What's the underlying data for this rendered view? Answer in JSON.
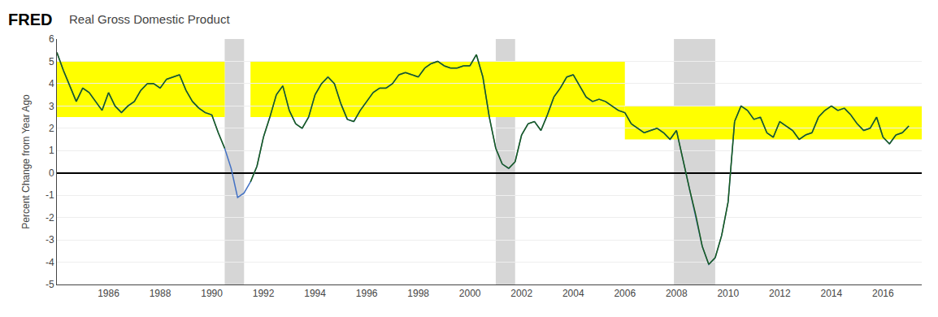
{
  "chart_data": {
    "type": "line",
    "title": "Real Gross Domestic Product",
    "ylabel": "Percent Change from Year Ago",
    "annotations": [
      "FRED"
    ],
    "color": "#4472c4",
    "x": [
      1984.0,
      1984.25,
      1984.5,
      1984.75,
      1985.0,
      1985.25,
      1985.5,
      1985.75,
      1986.0,
      1986.25,
      1986.5,
      1986.75,
      1987.0,
      1987.25,
      1987.5,
      1987.75,
      1988.0,
      1988.25,
      1988.5,
      1988.75,
      1989.0,
      1989.25,
      1989.5,
      1989.75,
      1990.0,
      1990.25,
      1990.5,
      1990.75,
      1991.0,
      1991.25,
      1991.5,
      1991.75,
      1992.0,
      1992.25,
      1992.5,
      1992.75,
      1993.0,
      1993.25,
      1993.5,
      1993.75,
      1994.0,
      1994.25,
      1994.5,
      1994.75,
      1995.0,
      1995.25,
      1995.5,
      1995.75,
      1996.0,
      1996.25,
      1996.5,
      1996.75,
      1997.0,
      1997.25,
      1997.5,
      1997.75,
      1998.0,
      1998.25,
      1998.5,
      1998.75,
      1999.0,
      1999.25,
      1999.5,
      1999.75,
      2000.0,
      2000.25,
      2000.5,
      2000.75,
      2001.0,
      2001.25,
      2001.5,
      2001.75,
      2002.0,
      2002.25,
      2002.5,
      2002.75,
      2003.0,
      2003.25,
      2003.5,
      2003.75,
      2004.0,
      2004.25,
      2004.5,
      2004.75,
      2005.0,
      2005.25,
      2005.5,
      2005.75,
      2006.0,
      2006.25,
      2006.5,
      2006.75,
      2007.0,
      2007.25,
      2007.5,
      2007.75,
      2008.0,
      2008.25,
      2008.5,
      2008.75,
      2009.0,
      2009.25,
      2009.5,
      2009.75,
      2010.0,
      2010.25,
      2010.5,
      2010.75,
      2011.0,
      2011.25,
      2011.5,
      2011.75,
      2012.0,
      2012.25,
      2012.5,
      2012.75,
      2013.0,
      2013.25,
      2013.5,
      2013.75,
      2014.0,
      2014.25,
      2014.5,
      2014.75,
      2015.0,
      2015.25,
      2015.5,
      2015.75,
      2016.0,
      2016.25,
      2016.5,
      2016.75,
      2017.0
    ],
    "values": [
      5.4,
      4.6,
      3.9,
      3.2,
      3.8,
      3.6,
      3.2,
      2.8,
      3.6,
      3.0,
      2.7,
      3.0,
      3.2,
      3.7,
      4.0,
      4.0,
      3.8,
      4.2,
      4.3,
      4.4,
      3.7,
      3.2,
      2.9,
      2.7,
      2.6,
      1.8,
      1.1,
      0.2,
      -1.1,
      -0.9,
      -0.4,
      0.3,
      1.6,
      2.5,
      3.5,
      3.9,
      2.8,
      2.2,
      2.0,
      2.5,
      3.5,
      4.0,
      4.3,
      4.0,
      3.1,
      2.4,
      2.3,
      2.8,
      3.2,
      3.6,
      3.8,
      3.8,
      4.0,
      4.4,
      4.5,
      4.4,
      4.3,
      4.7,
      4.9,
      5.0,
      4.8,
      4.7,
      4.7,
      4.8,
      4.8,
      5.3,
      4.3,
      2.5,
      1.1,
      0.4,
      0.2,
      0.5,
      1.7,
      2.2,
      2.3,
      1.9,
      2.6,
      3.4,
      3.8,
      4.3,
      4.4,
      3.9,
      3.4,
      3.2,
      3.3,
      3.2,
      3.0,
      2.8,
      2.7,
      2.2,
      2.0,
      1.8,
      1.9,
      2.0,
      1.8,
      1.5,
      1.9,
      0.6,
      -0.7,
      -1.9,
      -3.3,
      -4.1,
      -3.8,
      -2.8,
      -1.3,
      2.3,
      3.0,
      2.8,
      2.4,
      2.5,
      1.8,
      1.6,
      2.3,
      2.1,
      1.9,
      1.5,
      1.7,
      1.8,
      2.5,
      2.8,
      3.0,
      2.8,
      2.9,
      2.6,
      2.2,
      1.9,
      2.0,
      2.5,
      1.6,
      1.3,
      1.7,
      1.8,
      2.1
    ],
    "highlight_bands": [
      {
        "xmin": 1984.0,
        "xmax": 1990.5,
        "ymin": 2.5,
        "ymax": 5.0
      },
      {
        "xmin": 1991.5,
        "xmax": 2006.0,
        "ymin": 2.5,
        "ymax": 5.0
      },
      {
        "xmin": 2006.0,
        "xmax": 2017.5,
        "ymin": 1.5,
        "ymax": 3.0
      }
    ],
    "highlight_color": "#ffff00",
    "highlight_line_color": "#1a5c1a",
    "recessions": [
      {
        "xmin": 1990.5,
        "xmax": 1991.25
      },
      {
        "xmin": 2001.0,
        "xmax": 2001.75
      },
      {
        "xmin": 2007.9,
        "xmax": 2009.5
      }
    ],
    "recession_color": "#cccccc",
    "zero_line_color": "#000000",
    "xlim": [
      1984.0,
      2017.5
    ],
    "ylim": [
      -5,
      6
    ],
    "xticks": [
      1986,
      1988,
      1990,
      1992,
      1994,
      1996,
      1998,
      2000,
      2002,
      2004,
      2006,
      2008,
      2010,
      2012,
      2014,
      2016
    ],
    "yticks": [
      -5,
      -4,
      -3,
      -2,
      -1,
      0,
      1,
      2,
      3,
      4,
      5,
      6
    ],
    "grid": "y"
  }
}
